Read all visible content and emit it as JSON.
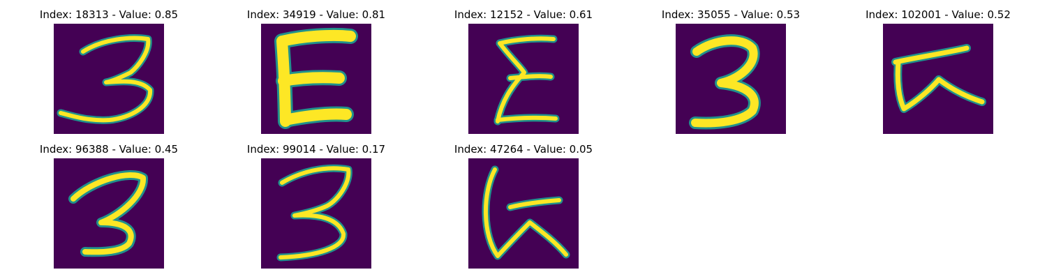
{
  "colors": {
    "background": "#440154",
    "stroke_edge": "#21918c",
    "stroke_mid": "#5ec962",
    "stroke_core": "#fde725"
  },
  "panels": [
    {
      "title": "Index: 18313 - Value: 0.85",
      "glyph": "digit-3"
    },
    {
      "title": "Index: 34919 - Value: 0.81",
      "glyph": "letter-E"
    },
    {
      "title": "Index: 12152 - Value: 0.61",
      "glyph": "letter-E"
    },
    {
      "title": "Index: 35055 - Value: 0.53",
      "glyph": "digit-3"
    },
    {
      "title": "Index: 102001 - Value: 0.52",
      "glyph": "symbol-K"
    },
    {
      "title": "Index: 96388 - Value: 0.45",
      "glyph": "digit-3"
    },
    {
      "title": "Index: 99014 - Value: 0.17",
      "glyph": "digit-3"
    },
    {
      "title": "Index: 47264 - Value: 0.05",
      "glyph": "symbol-K"
    }
  ]
}
